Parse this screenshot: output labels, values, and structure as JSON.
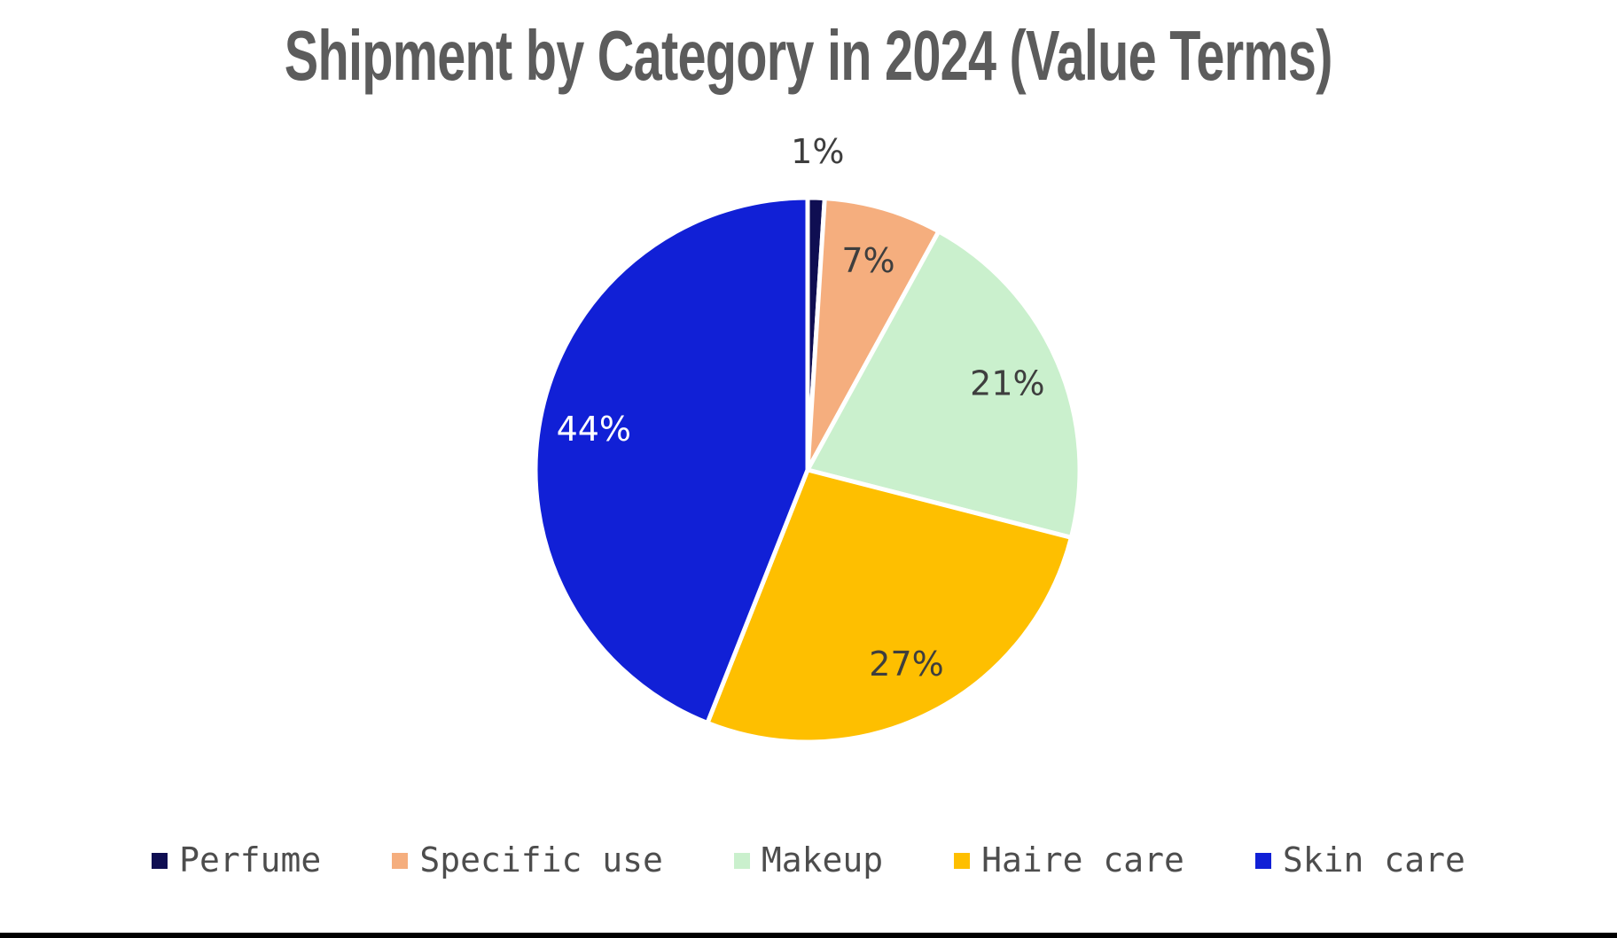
{
  "page": {
    "background_color": "#ffffff",
    "bottom_bar_color": "#000000"
  },
  "chart_data": {
    "type": "pie",
    "title": "Shipment by Category in 2024 (Value Terms)",
    "title_color": "#5C5C5C",
    "unit": "%",
    "start_angle": "12-oclock, clockwise",
    "legend_position": "bottom",
    "categories": [
      "Perfume",
      "Specific use",
      "Makeup",
      "Haire care",
      "Skin care"
    ],
    "values": [
      1,
      7,
      21,
      27,
      44
    ],
    "slices": [
      {
        "label": "Perfume",
        "value": 1,
        "pct_label": "1%",
        "color": "#0F0E52",
        "label_color": "#3E3E3E",
        "label_placement": "outside"
      },
      {
        "label": "Specific use",
        "value": 7,
        "pct_label": "7%",
        "color": "#F5AE7E",
        "label_color": "#3E3E3E",
        "label_placement": "inside"
      },
      {
        "label": "Makeup",
        "value": 21,
        "pct_label": "21%",
        "color": "#CAF0CD",
        "label_color": "#3E3E3E",
        "label_placement": "inside"
      },
      {
        "label": "Haire care",
        "value": 27,
        "pct_label": "27%",
        "color": "#FEBF00",
        "label_color": "#3E3E3E",
        "label_placement": "inside"
      },
      {
        "label": "Skin care",
        "value": 44,
        "pct_label": "44%",
        "color": "#1120D6",
        "label_color": "#FFFFFF",
        "label_placement": "inside"
      }
    ]
  }
}
